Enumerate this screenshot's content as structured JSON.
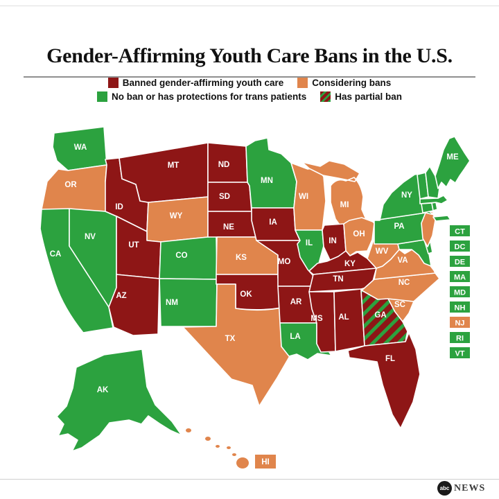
{
  "page": {
    "title": "Gender-Affirming Youth Care Bans in the U.S."
  },
  "legend": [
    {
      "id": "banned",
      "label": "Banned gender-affirming youth care",
      "color": "#8e1616",
      "swatch": "solid"
    },
    {
      "id": "considering",
      "label": "Considering bans",
      "color": "#e0854c",
      "swatch": "solid"
    },
    {
      "id": "none",
      "label": "No ban or has protections for trans patients",
      "color": "#2ca23f",
      "swatch": "solid"
    },
    {
      "id": "partial",
      "label": "Has partial ban",
      "color": "#8e1616",
      "swatch": "hatched",
      "hatch_color": "#2ca23f"
    }
  ],
  "chart_data": {
    "type": "choropleth",
    "title": "Gender-Affirming Youth Care Bans in the U.S.",
    "legend_position": "top",
    "categories": {
      "banned": "Banned gender-affirming youth care",
      "considering": "Considering bans",
      "none": "No ban or has protections for trans patients",
      "partial": "Has partial ban"
    },
    "states": [
      {
        "id": "WA",
        "label": "WA",
        "status": "none"
      },
      {
        "id": "OR",
        "label": "OR",
        "status": "considering"
      },
      {
        "id": "CA",
        "label": "CA",
        "status": "none"
      },
      {
        "id": "NV",
        "label": "NV",
        "status": "none"
      },
      {
        "id": "ID",
        "label": "ID",
        "status": "banned"
      },
      {
        "id": "MT",
        "label": "MT",
        "status": "banned"
      },
      {
        "id": "WY",
        "label": "WY",
        "status": "considering"
      },
      {
        "id": "UT",
        "label": "UT",
        "status": "banned"
      },
      {
        "id": "CO",
        "label": "CO",
        "status": "none"
      },
      {
        "id": "AZ",
        "label": "AZ",
        "status": "banned"
      },
      {
        "id": "NM",
        "label": "NM",
        "status": "none"
      },
      {
        "id": "ND",
        "label": "ND",
        "status": "banned"
      },
      {
        "id": "SD",
        "label": "SD",
        "status": "banned"
      },
      {
        "id": "NE",
        "label": "NE",
        "status": "banned"
      },
      {
        "id": "KS",
        "label": "KS",
        "status": "considering"
      },
      {
        "id": "OK",
        "label": "OK",
        "status": "banned"
      },
      {
        "id": "TX",
        "label": "TX",
        "status": "considering"
      },
      {
        "id": "MN",
        "label": "MN",
        "status": "none"
      },
      {
        "id": "IA",
        "label": "IA",
        "status": "banned"
      },
      {
        "id": "MO",
        "label": "MO",
        "status": "banned"
      },
      {
        "id": "AR",
        "label": "AR",
        "status": "banned"
      },
      {
        "id": "LA",
        "label": "LA",
        "status": "none"
      },
      {
        "id": "WI",
        "label": "WI",
        "status": "considering"
      },
      {
        "id": "IL",
        "label": "IL",
        "status": "none"
      },
      {
        "id": "MI",
        "label": "MI",
        "status": "considering"
      },
      {
        "id": "IN",
        "label": "IN",
        "status": "banned"
      },
      {
        "id": "OH",
        "label": "OH",
        "status": "considering"
      },
      {
        "id": "KY",
        "label": "KY",
        "status": "banned"
      },
      {
        "id": "TN",
        "label": "TN",
        "status": "banned"
      },
      {
        "id": "MS",
        "label": "MS",
        "status": "banned"
      },
      {
        "id": "AL",
        "label": "AL",
        "status": "banned"
      },
      {
        "id": "GA",
        "label": "GA",
        "status": "partial"
      },
      {
        "id": "FL",
        "label": "FL",
        "status": "banned"
      },
      {
        "id": "SC",
        "label": "SC",
        "status": "considering"
      },
      {
        "id": "NC",
        "label": "NC",
        "status": "considering"
      },
      {
        "id": "VA",
        "label": "VA",
        "status": "considering"
      },
      {
        "id": "WV",
        "label": "WV",
        "status": "considering"
      },
      {
        "id": "MD",
        "label": "MD",
        "status": "none"
      },
      {
        "id": "DE",
        "label": "DE",
        "status": "none"
      },
      {
        "id": "PA",
        "label": "PA",
        "status": "none"
      },
      {
        "id": "NJ",
        "label": "NJ",
        "status": "considering"
      },
      {
        "id": "NY",
        "label": "NY",
        "status": "none"
      },
      {
        "id": "CT",
        "label": "CT",
        "status": "none"
      },
      {
        "id": "RI",
        "label": "RI",
        "status": "none"
      },
      {
        "id": "MA",
        "label": "MA",
        "status": "none"
      },
      {
        "id": "VT",
        "label": "VT",
        "status": "none"
      },
      {
        "id": "NH",
        "label": "NH",
        "status": "none"
      },
      {
        "id": "ME",
        "label": "ME",
        "status": "none"
      },
      {
        "id": "AK",
        "label": "AK",
        "status": "none"
      },
      {
        "id": "HI",
        "label": "HI",
        "status": "considering"
      },
      {
        "id": "DC",
        "label": "DC",
        "status": "none"
      }
    ],
    "small_states_list": [
      "CT",
      "DC",
      "DE",
      "MA",
      "MD",
      "NH",
      "NJ",
      "RI",
      "VT"
    ]
  },
  "footer": {
    "abc_text": "abc",
    "news_text": "NEWS"
  }
}
